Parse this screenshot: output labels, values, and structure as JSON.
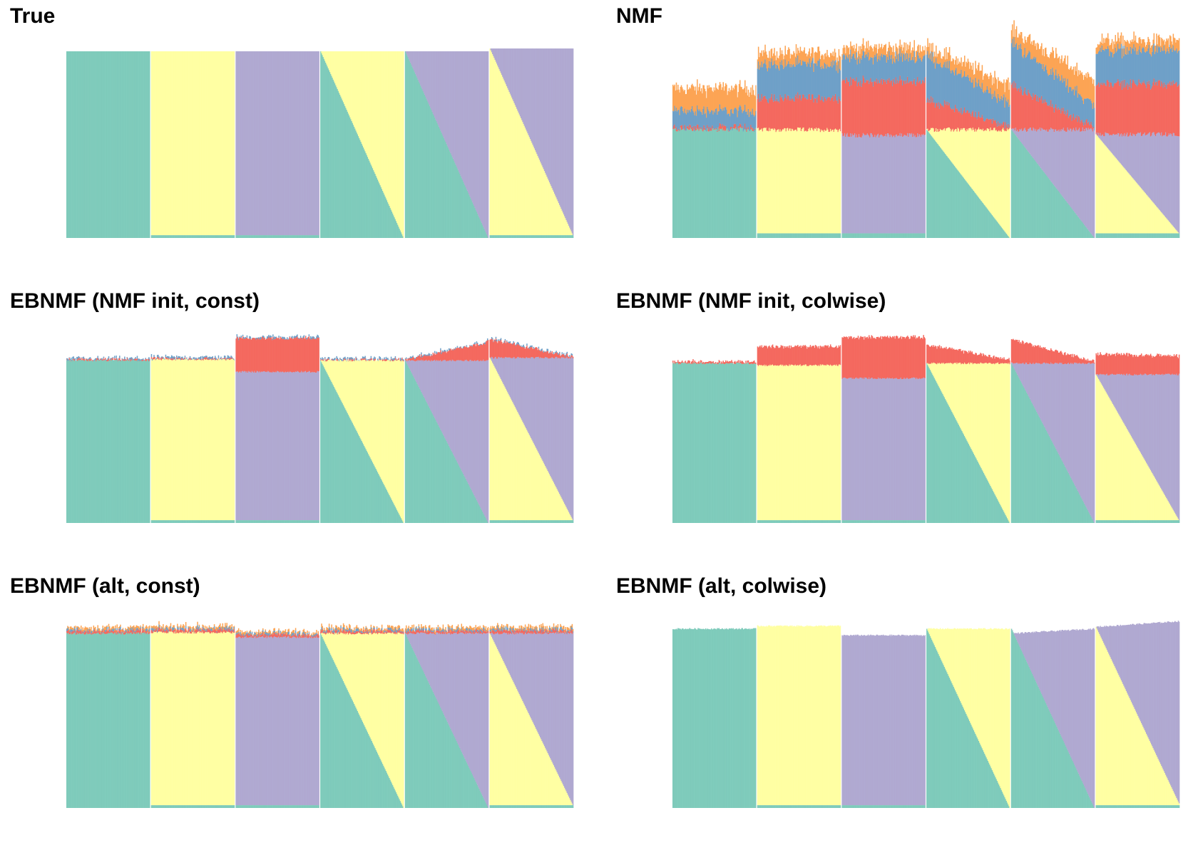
{
  "figure": {
    "description_colors": {
      "teal": "#7fcbbb",
      "yellow": "#ffffa3",
      "purple": "#b0a9d1",
      "red": "#f4695f",
      "blue": "#6fa0c8",
      "orange": "#fca454",
      "divider": "#ffffff"
    }
  },
  "chart_data": [
    {
      "type": "stacked-bar-structure",
      "title": "True",
      "groups": 6,
      "bars_per_group": 100,
      "ylim": [
        0,
        1
      ],
      "series_order": [
        "teal",
        "yellow",
        "purple",
        "red",
        "blue",
        "orange"
      ],
      "groups_def": [
        {
          "base": {
            "teal": 1.0
          }
        },
        {
          "base": {
            "teal": 0.015,
            "yellow": 0.985
          }
        },
        {
          "base": {
            "teal": 0.015,
            "purple": 0.985
          }
        },
        {
          "ramp": [
            "teal",
            "yellow"
          ],
          "ramp_from": 1.0,
          "ramp_to": 0.0
        },
        {
          "ramp": [
            "teal",
            "purple"
          ],
          "ramp_from": 1.0,
          "ramp_to": 0.0
        },
        {
          "ramp": [
            "yellow",
            "purple"
          ],
          "ramp_from": 0.0,
          "ramp_to": 1.0,
          "floor": {
            "teal": 0.015
          }
        }
      ],
      "extras": [
        [],
        [],
        [],
        [],
        [],
        []
      ],
      "total": [
        1.0,
        1.0,
        1.0,
        1.0,
        1.0,
        1.0
      ],
      "noise": 0.0
    },
    {
      "type": "stacked-bar-structure",
      "title": "NMF",
      "groups": 6,
      "bars_per_group": 100,
      "ylim": [
        0,
        1.05
      ],
      "series_order": [
        "teal",
        "yellow",
        "purple",
        "red",
        "blue",
        "orange"
      ],
      "groups_def": [
        {
          "base": {
            "teal": 0.58
          }
        },
        {
          "base": {
            "teal": 0.025,
            "yellow": 0.555
          }
        },
        {
          "base": {
            "teal": 0.025,
            "purple": 0.525
          }
        },
        {
          "ramp": [
            "teal",
            "yellow"
          ],
          "ramp_from": 0.58,
          "ramp_to": 0.0
        },
        {
          "ramp": [
            "teal",
            "purple"
          ],
          "ramp_from": 0.58,
          "ramp_to": 0.0
        },
        {
          "ramp": [
            "yellow",
            "purple"
          ],
          "ramp_from": 0.0,
          "ramp_to": 0.53,
          "floor": {
            "teal": 0.025
          }
        }
      ],
      "extras": [
        [
          {
            "red": 0.01
          },
          {
            "blue": 0.09
          },
          {
            "orange": 0.12
          }
        ],
        [
          {
            "red": 0.17
          },
          {
            "blue": 0.18
          },
          {
            "orange": 0.06
          }
        ],
        [
          {
            "red": 0.29
          },
          {
            "blue": 0.13
          },
          {
            "orange": 0.05
          }
        ],
        [
          {
            "red": [
              0.16,
              0.02
            ]
          },
          {
            "blue": [
              0.24,
              0.12
            ]
          },
          {
            "orange": [
              0.05,
              0.1
            ]
          }
        ],
        [
          {
            "red": [
              0.24,
              0.01
            ]
          },
          {
            "blue": [
              0.23,
              0.12
            ]
          },
          {
            "orange": [
              0.07,
              0.13
            ]
          }
        ],
        [
          {
            "red": 0.27
          },
          {
            "blue": 0.18
          },
          {
            "orange": 0.05
          }
        ]
      ],
      "noise": 0.025
    },
    {
      "type": "stacked-bar-structure",
      "title": "EBNMF (NMF init, const)",
      "groups": 6,
      "bars_per_group": 100,
      "ylim": [
        0,
        1.05
      ],
      "series_order": [
        "teal",
        "yellow",
        "purple",
        "red",
        "blue",
        "orange"
      ],
      "groups_def": [
        {
          "base": {
            "teal": 0.87
          }
        },
        {
          "base": {
            "teal": 0.015,
            "yellow": 0.86
          }
        },
        {
          "base": {
            "teal": 0.015,
            "purple": 0.795
          }
        },
        {
          "ramp": [
            "teal",
            "yellow"
          ],
          "ramp_from": 0.87,
          "ramp_to": 0.0
        },
        {
          "ramp": [
            "teal",
            "purple"
          ],
          "ramp_from": 0.87,
          "ramp_to": 0.0
        },
        {
          "ramp": [
            "yellow",
            "purple"
          ],
          "ramp_from": 0.0,
          "ramp_to": 0.87,
          "floor": {
            "teal": 0.015
          }
        }
      ],
      "extras": [
        [
          {
            "red": 0.004
          },
          {
            "blue": 0.006
          }
        ],
        [
          {
            "red": 0.004
          },
          {
            "blue": 0.008
          }
        ],
        [
          {
            "red": 0.18
          },
          {
            "blue": 0.006
          }
        ],
        [
          {
            "red": 0.004
          },
          {
            "blue": 0.006
          }
        ],
        [
          {
            "red": [
              0.004,
              0.1
            ]
          },
          {
            "blue": 0.004
          }
        ],
        [
          {
            "red": [
              0.1,
              0.004
            ]
          },
          {
            "blue": 0.004
          }
        ]
      ],
      "noise": 0.01
    },
    {
      "type": "stacked-bar-structure",
      "title": "EBNMF (NMF init, colwise)",
      "groups": 6,
      "bars_per_group": 100,
      "ylim": [
        0,
        1.05
      ],
      "series_order": [
        "teal",
        "yellow",
        "purple",
        "red",
        "blue",
        "orange"
      ],
      "groups_def": [
        {
          "base": {
            "teal": 0.855
          }
        },
        {
          "base": {
            "teal": 0.015,
            "yellow": 0.83
          }
        },
        {
          "base": {
            "teal": 0.015,
            "purple": 0.76
          }
        },
        {
          "ramp": [
            "teal",
            "yellow"
          ],
          "ramp_from": 0.855,
          "ramp_to": 0.0
        },
        {
          "ramp": [
            "teal",
            "purple"
          ],
          "ramp_from": 0.855,
          "ramp_to": 0.0
        },
        {
          "ramp": [
            "yellow",
            "purple"
          ],
          "ramp_from": 0.0,
          "ramp_to": 0.78,
          "floor": {
            "teal": 0.015
          }
        }
      ],
      "extras": [
        [
          {
            "red": 0.01
          }
        ],
        [
          {
            "red": 0.1
          }
        ],
        [
          {
            "red": 0.22
          }
        ],
        [
          {
            "red": [
              0.1,
              0.02
            ]
          }
        ],
        [
          {
            "red": [
              0.13,
              0.01
            ]
          }
        ],
        [
          {
            "red": [
              0.11,
              0.1
            ]
          }
        ]
      ],
      "noise": 0.01
    },
    {
      "type": "stacked-bar-structure",
      "title": "EBNMF (alt, const)",
      "groups": 6,
      "bars_per_group": 100,
      "ylim": [
        0,
        1.05
      ],
      "series_order": [
        "teal",
        "yellow",
        "purple",
        "red",
        "blue",
        "orange"
      ],
      "groups_def": [
        {
          "base": {
            "teal": 0.935
          }
        },
        {
          "base": {
            "teal": 0.015,
            "yellow": 0.925
          }
        },
        {
          "base": {
            "teal": 0.015,
            "purple": 0.9
          }
        },
        {
          "ramp": [
            "teal",
            "yellow"
          ],
          "ramp_from": 0.935,
          "ramp_to": 0.0
        },
        {
          "ramp": [
            "teal",
            "purple"
          ],
          "ramp_from": 0.935,
          "ramp_to": 0.0
        },
        {
          "ramp": [
            "yellow",
            "purple"
          ],
          "ramp_from": 0.0,
          "ramp_to": 0.92,
          "floor": {
            "teal": 0.015
          }
        }
      ],
      "extras": [
        [
          {
            "red": 0.012
          },
          {
            "blue": 0.008
          },
          {
            "orange": 0.012
          }
        ],
        [
          {
            "red": 0.012
          },
          {
            "blue": 0.008
          },
          {
            "orange": 0.012
          }
        ],
        [
          {
            "red": 0.012
          },
          {
            "blue": 0.008
          },
          {
            "orange": 0.01
          }
        ],
        [
          {
            "red": 0.012
          },
          {
            "blue": 0.008
          },
          {
            "orange": 0.012
          }
        ],
        [
          {
            "red": 0.012
          },
          {
            "blue": 0.008
          },
          {
            "orange": 0.012
          }
        ],
        [
          {
            "red": 0.012
          },
          {
            "blue": 0.008
          },
          {
            "orange": 0.012
          }
        ]
      ],
      "noise": 0.012
    },
    {
      "type": "stacked-bar-structure",
      "title": "EBNMF (alt, colwise)",
      "groups": 6,
      "bars_per_group": 100,
      "ylim": [
        0,
        1.05
      ],
      "series_order": [
        "teal",
        "yellow",
        "purple",
        "red",
        "blue",
        "orange"
      ],
      "groups_def": [
        {
          "base": {
            "teal": 0.96
          }
        },
        {
          "base": {
            "teal": 0.015,
            "yellow": 0.96
          }
        },
        {
          "base": {
            "teal": 0.015,
            "purple": 0.925
          }
        },
        {
          "ramp": [
            "teal",
            "yellow"
          ],
          "ramp_from": 0.96,
          "ramp_to": 0.0
        },
        {
          "ramp": [
            "teal",
            "purple"
          ],
          "ramp_from": 0.96,
          "ramp_to": 0.0
        },
        {
          "ramp": [
            "yellow",
            "purple"
          ],
          "ramp_from": 0.0,
          "ramp_to": 0.975,
          "floor": {
            "teal": 0.015
          }
        }
      ],
      "extras": [
        [],
        [],
        [],
        [],
        [],
        []
      ],
      "total_drift": [
        [
          0.96,
          0.96
        ],
        [
          0.975,
          0.975
        ],
        [
          0.925,
          0.925
        ],
        [
          0.96,
          0.96
        ],
        [
          0.935,
          0.96
        ],
        [
          0.955,
          0.985
        ]
      ],
      "noise": 0.008
    }
  ]
}
